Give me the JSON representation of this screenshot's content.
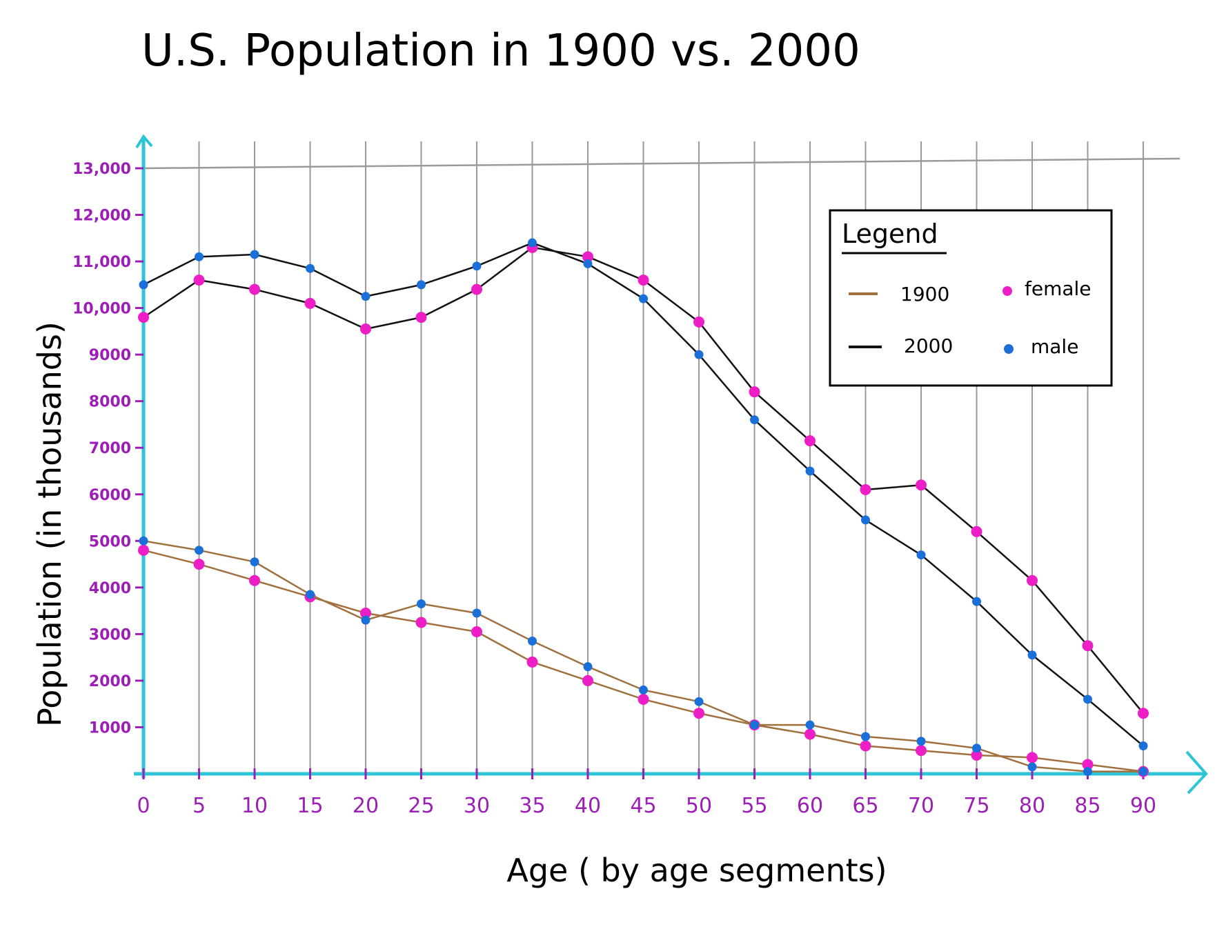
{
  "chart_data": {
    "type": "line",
    "title": "U.S. Population in 1900 vs. 2000",
    "xlabel": "Age ( by age segments)",
    "ylabel": "Population (in thousands)",
    "x": [
      0,
      5,
      10,
      15,
      20,
      25,
      30,
      35,
      40,
      45,
      50,
      55,
      60,
      65,
      70,
      75,
      80,
      85,
      90
    ],
    "x_tick_labels": [
      "0",
      "5",
      "10",
      "15",
      "20",
      "25",
      "30",
      "35",
      "40",
      "45",
      "50",
      "55",
      "60",
      "65",
      "70",
      "75",
      "80",
      "85",
      "90"
    ],
    "y_tick_labels": [
      "1000",
      "2000",
      "3000",
      "4000",
      "5000",
      "6000",
      "7000",
      "8000",
      "9000",
      "10,000",
      "11,000",
      "12,000",
      "13,000"
    ],
    "y_ticks": [
      1000,
      2000,
      3000,
      4000,
      5000,
      6000,
      7000,
      8000,
      9000,
      10000,
      11000,
      12000,
      13000
    ],
    "ylim": [
      0,
      13000
    ],
    "xlim": [
      0,
      90
    ],
    "grid": "vertical lines at each age",
    "series": [
      {
        "name": "1900",
        "sex": "female",
        "color": "#a0703e",
        "point_color": "#ee1ec6",
        "values": [
          4800,
          4500,
          4150,
          3800,
          3450,
          3250,
          3050,
          2400,
          2000,
          1600,
          1300,
          1050,
          850,
          600,
          500,
          400,
          350,
          200,
          50
        ]
      },
      {
        "name": "1900",
        "sex": "male",
        "color": "#a0703e",
        "point_color": "#1a6fd8",
        "values": [
          5000,
          4800,
          4550,
          3850,
          3300,
          3650,
          3450,
          2850,
          2300,
          1800,
          1550,
          1050,
          1050,
          800,
          700,
          550,
          150,
          50,
          50
        ]
      },
      {
        "name": "2000",
        "sex": "female",
        "color": "#111111",
        "point_color": "#ee1ec6",
        "values": [
          9800,
          10600,
          10400,
          10100,
          9550,
          9800,
          10400,
          11300,
          11100,
          10600,
          9700,
          8200,
          7150,
          6100,
          6200,
          5200,
          4150,
          2750,
          1300
        ]
      },
      {
        "name": "2000",
        "sex": "male",
        "color": "#111111",
        "point_color": "#1a6fd8",
        "values": [
          10500,
          11100,
          11150,
          10850,
          10250,
          10500,
          10900,
          11400,
          10950,
          10200,
          9000,
          7600,
          6500,
          5450,
          4700,
          3700,
          2550,
          1600,
          600
        ]
      }
    ],
    "legend": {
      "title": "Legend",
      "placement": "top-right",
      "items": [
        {
          "label": "1900",
          "kind": "line",
          "color": "#a0703e"
        },
        {
          "label": "2000",
          "kind": "line",
          "color": "#111111"
        },
        {
          "label": "female",
          "kind": "point",
          "color": "#ee1ec6"
        },
        {
          "label": "male",
          "kind": "point",
          "color": "#1a6fd8"
        }
      ]
    },
    "colors": {
      "axis": "#2ec4d6",
      "grid": "#9a9a9a",
      "tick_text": "#9b1fb5"
    }
  }
}
